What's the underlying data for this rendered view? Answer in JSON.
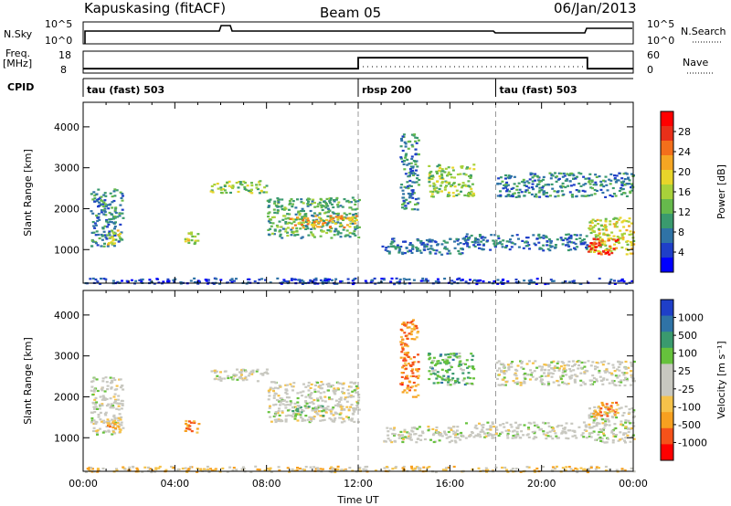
{
  "header": {
    "station": "Kapuskasing (fitACF)",
    "beam": "Beam 05",
    "date": "06/Jan/2013"
  },
  "summary": {
    "nsky_label": "N.Sky",
    "nsky_ticks": [
      "10^5",
      "10^0"
    ],
    "nsearch_label": "N.Search",
    "nsearch_ticks": [
      "10^5",
      "10^0"
    ],
    "freq_label_line1": "Freq.",
    "freq_label_line2": "[MHz]",
    "freq_ticks": [
      "18",
      "8"
    ],
    "nave_label": "Nave",
    "nave_ticks": [
      "60",
      "0"
    ],
    "cpid_label": "CPID",
    "cpid_segments": [
      {
        "start_h": 0,
        "label": "tau (fast) 503"
      },
      {
        "start_h": 12,
        "label": "rbsp 200"
      },
      {
        "start_h": 18,
        "label": "tau (fast) 503"
      }
    ],
    "freq_steps": [
      {
        "start_h": 0,
        "end_h": 12,
        "value": 10
      },
      {
        "start_h": 12,
        "end_h": 22,
        "value": 15
      },
      {
        "start_h": 22,
        "end_h": 24,
        "value": 10
      }
    ]
  },
  "chart_data": [
    {
      "type": "heatmap",
      "name": "power",
      "ylabel": "Slant Range [km]",
      "xlim_hours": [
        0,
        24
      ],
      "ylim_km": [
        180,
        4600
      ],
      "yticks": [
        "1000",
        "2000",
        "3000",
        "4000"
      ],
      "colorbar_label": "Power [dB]",
      "colorbar_ticks": [
        "28",
        "24",
        "20",
        "16",
        "12",
        "8",
        "4"
      ],
      "colorbar_colors": [
        "#0000ff",
        "#1f3fc8",
        "#2f73a6",
        "#3a9a6e",
        "#66b94c",
        "#a8d13a",
        "#e8d52a",
        "#f5a623",
        "#f36f1b",
        "#e9301a",
        "#ff0000"
      ],
      "regions": [
        {
          "t0": 0.3,
          "t1": 1.7,
          "r0": 1100,
          "r1": 2500,
          "level": 0.25
        },
        {
          "t0": 1.0,
          "t1": 1.6,
          "r0": 1150,
          "r1": 1500,
          "level": 0.55
        },
        {
          "t0": 4.4,
          "t1": 5.0,
          "r0": 1150,
          "r1": 1450,
          "level": 0.55
        },
        {
          "t0": 5.5,
          "t1": 8.0,
          "r0": 2400,
          "r1": 2700,
          "level": 0.45
        },
        {
          "t0": 8.0,
          "t1": 12.0,
          "r0": 1300,
          "r1": 2300,
          "level": 0.35
        },
        {
          "t0": 9.0,
          "t1": 12.0,
          "r0": 1550,
          "r1": 1850,
          "level": 0.7
        },
        {
          "t0": 13.0,
          "t1": 16.5,
          "r0": 900,
          "r1": 1300,
          "level": 0.2
        },
        {
          "t0": 13.8,
          "t1": 14.6,
          "r0": 2000,
          "r1": 3900,
          "level": 0.25
        },
        {
          "t0": 15.0,
          "t1": 17.0,
          "r0": 2300,
          "r1": 3100,
          "level": 0.45
        },
        {
          "t0": 16.5,
          "t1": 22.0,
          "r0": 1000,
          "r1": 1400,
          "level": 0.2
        },
        {
          "t0": 18.0,
          "t1": 24.0,
          "r0": 2300,
          "r1": 2900,
          "level": 0.25
        },
        {
          "t0": 22.0,
          "t1": 24.0,
          "r0": 900,
          "r1": 1800,
          "level": 0.55
        },
        {
          "t0": 22.0,
          "t1": 23.3,
          "r0": 900,
          "r1": 1300,
          "level": 0.9
        },
        {
          "t0": 0.0,
          "t1": 24.0,
          "r0": 180,
          "r1": 320,
          "level": 0.1
        }
      ]
    },
    {
      "type": "heatmap",
      "name": "velocity",
      "ylabel": "Slant Range [km]",
      "xlabel": "Time UT",
      "xlim_hours": [
        0,
        24
      ],
      "ylim_km": [
        180,
        4600
      ],
      "yticks": [
        "1000",
        "2000",
        "3000",
        "4000"
      ],
      "xticks": [
        "00:00",
        "04:00",
        "08:00",
        "12:00",
        "16:00",
        "20:00",
        "00:00"
      ],
      "colorbar_label": "Velocity [m s⁻¹]",
      "colorbar_ticks": [
        "1000",
        "500",
        "100",
        "25",
        "-25",
        "-100",
        "-500",
        "-1000"
      ],
      "colorbar_colors": [
        "#ff0000",
        "#f5521a",
        "#f7a020",
        "#f5c24a",
        "#c8c8c0",
        "#c8c8c0",
        "#66c23c",
        "#3a9a6e",
        "#2f73a6",
        "#1f3fc8"
      ],
      "regions": [
        {
          "t0": 0.3,
          "t1": 1.7,
          "r0": 1100,
          "r1": 2500,
          "level": 0.5
        },
        {
          "t0": 1.0,
          "t1": 1.6,
          "r0": 1150,
          "r1": 1500,
          "level": 0.25
        },
        {
          "t0": 4.4,
          "t1": 5.0,
          "r0": 1150,
          "r1": 1450,
          "level": 0.2
        },
        {
          "t0": 5.5,
          "t1": 8.0,
          "r0": 2400,
          "r1": 2700,
          "level": 0.5
        },
        {
          "t0": 8.0,
          "t1": 12.0,
          "r0": 1400,
          "r1": 2400,
          "level": 0.5
        },
        {
          "t0": 9.0,
          "t1": 10.5,
          "r0": 1550,
          "r1": 1800,
          "level": 0.65
        },
        {
          "t0": 13.0,
          "t1": 16.5,
          "r0": 900,
          "r1": 1300,
          "level": 0.5
        },
        {
          "t0": 13.8,
          "t1": 14.6,
          "r0": 2000,
          "r1": 3900,
          "level": 0.2
        },
        {
          "t0": 15.0,
          "t1": 17.0,
          "r0": 2300,
          "r1": 3100,
          "level": 0.7
        },
        {
          "t0": 16.5,
          "t1": 22.0,
          "r0": 1000,
          "r1": 1400,
          "level": 0.5
        },
        {
          "t0": 18.0,
          "t1": 24.0,
          "r0": 2300,
          "r1": 2900,
          "level": 0.5
        },
        {
          "t0": 22.0,
          "t1": 24.0,
          "r0": 900,
          "r1": 1800,
          "level": 0.5
        },
        {
          "t0": 22.2,
          "t1": 23.3,
          "r0": 1500,
          "r1": 1900,
          "level": 0.2
        },
        {
          "t0": 0.0,
          "t1": 24.0,
          "r0": 180,
          "r1": 320,
          "level": 0.35
        }
      ]
    }
  ]
}
